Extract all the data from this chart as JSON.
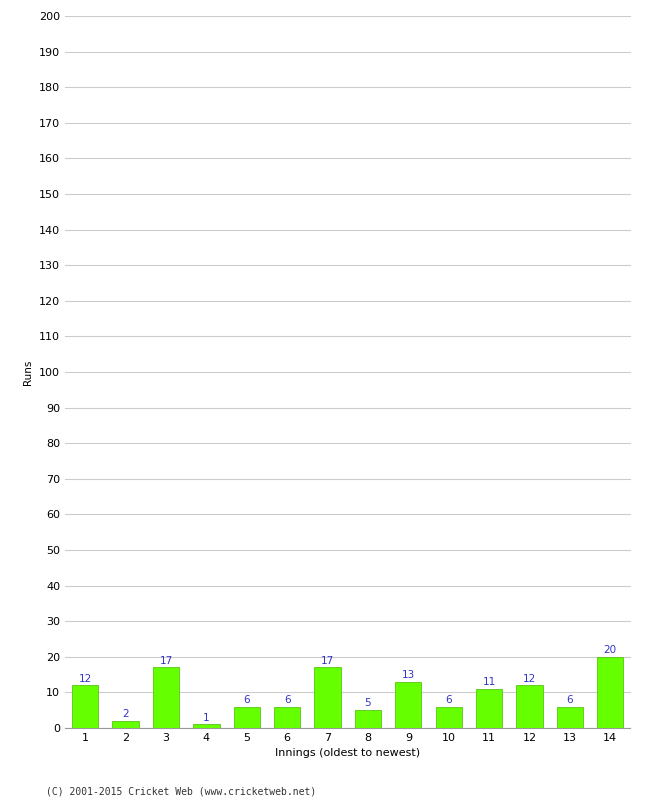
{
  "xlabel": "Innings (oldest to newest)",
  "ylabel": "Runs",
  "categories": [
    1,
    2,
    3,
    4,
    5,
    6,
    7,
    8,
    9,
    10,
    11,
    12,
    13,
    14
  ],
  "values": [
    12,
    2,
    17,
    1,
    6,
    6,
    17,
    5,
    13,
    6,
    11,
    12,
    6,
    20
  ],
  "bar_color": "#66ff00",
  "bar_edge_color": "#44bb00",
  "label_color": "#3333cc",
  "ylim": [
    0,
    200
  ],
  "yticks": [
    0,
    10,
    20,
    30,
    40,
    50,
    60,
    70,
    80,
    90,
    100,
    110,
    120,
    130,
    140,
    150,
    160,
    170,
    180,
    190,
    200
  ],
  "footnote": "(C) 2001-2015 Cricket Web (www.cricketweb.net)",
  "background_color": "#ffffff",
  "grid_color": "#cccccc",
  "label_fontsize": 7.5,
  "axis_fontsize": 8,
  "ylabel_fontsize": 7.5,
  "xlabel_fontsize": 8
}
